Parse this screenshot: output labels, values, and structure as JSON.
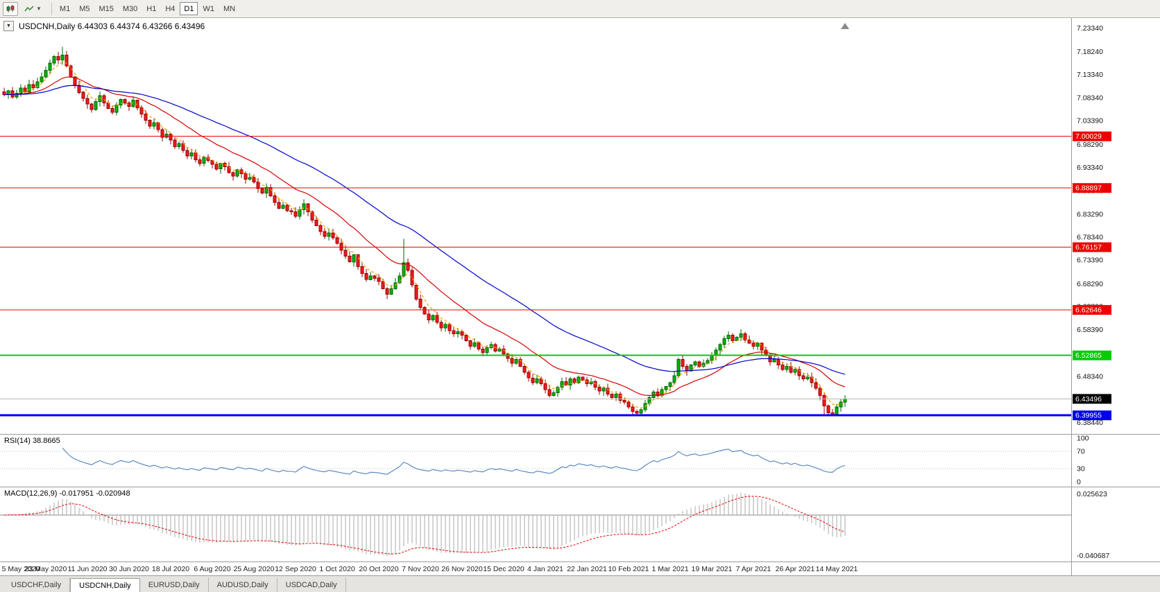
{
  "icons": {
    "dropdown_glyph": "▼",
    "caret_glyph": "▼"
  },
  "toolbar": {
    "timeframes": [
      "M1",
      "M5",
      "M15",
      "M30",
      "H1",
      "H4",
      "D1",
      "W1",
      "MN"
    ],
    "active_timeframe": "D1",
    "icons": [
      {
        "name": "chart-type-icon"
      },
      {
        "name": "indicators-icon"
      }
    ]
  },
  "chart": {
    "title": "USDCNH,Daily",
    "quote": {
      "open": "6.44303",
      "high": "6.44374",
      "low": "6.43266",
      "close": "6.43496"
    }
  },
  "chart_data": {
    "type": "candlestick",
    "symbol": "USDCNH",
    "timeframe": "Daily",
    "title": "USDCNH,Daily 6.44303 6.44374 6.43266 6.43496",
    "x_labels": [
      "5 May 2020",
      "23 May 2020",
      "11 Jun 2020",
      "30 Jun 2020",
      "18 Jul 2020",
      "6 Aug 2020",
      "25 Aug 2020",
      "12 Sep 2020",
      "1 Oct 2020",
      "20 Oct 2020",
      "7 Nov 2020",
      "26 Nov 2020",
      "15 Dec 2020",
      "4 Jan 2021",
      "22 Jan 2021",
      "10 Feb 2021",
      "1 Mar 2021",
      "19 Mar 2021",
      "7 Apr 2021",
      "26 Apr 2021",
      "14 May 2021"
    ],
    "x_label_bar_step": 10,
    "y_ticks": [
      "7.23340",
      "7.18240",
      "7.13340",
      "7.08340",
      "7.03390",
      "6.98290",
      "6.93340",
      "6.88340",
      "6.83290",
      "6.78340",
      "6.73390",
      "6.68290",
      "6.63390",
      "6.58390",
      "6.53340",
      "6.48340",
      "6.43340",
      "6.38440"
    ],
    "y_range": {
      "max": 7.255,
      "min": 6.3595
    },
    "closes": [
      7.09,
      7.098,
      7.085,
      7.093,
      7.104,
      7.096,
      7.112,
      7.105,
      7.118,
      7.128,
      7.142,
      7.158,
      7.172,
      7.165,
      7.175,
      7.152,
      7.128,
      7.11,
      7.095,
      7.082,
      7.07,
      7.058,
      7.075,
      7.088,
      7.072,
      7.06,
      7.052,
      7.068,
      7.08,
      7.072,
      7.065,
      7.078,
      7.062,
      7.048,
      7.035,
      7.022,
      7.03,
      7.015,
      6.998,
      7.005,
      6.992,
      6.978,
      6.985,
      6.97,
      6.958,
      6.965,
      6.95,
      6.942,
      6.955,
      6.948,
      6.94,
      6.93,
      6.942,
      6.935,
      6.922,
      6.915,
      6.928,
      6.92,
      6.908,
      6.912,
      6.902,
      6.888,
      6.878,
      6.89,
      6.872,
      6.858,
      6.845,
      6.852,
      6.84,
      6.838,
      6.828,
      6.842,
      6.855,
      6.838,
      6.82,
      6.808,
      6.795,
      6.785,
      6.792,
      6.782,
      6.77,
      6.755,
      6.742,
      6.73,
      6.745,
      6.72,
      6.705,
      6.692,
      6.7,
      6.695,
      6.688,
      6.672,
      6.66,
      6.672,
      6.685,
      6.7,
      6.728,
      6.712,
      6.68,
      6.65,
      6.632,
      6.618,
      6.605,
      6.615,
      6.6,
      6.588,
      6.595,
      6.582,
      6.575,
      6.58,
      6.572,
      6.56,
      6.548,
      6.556,
      6.542,
      6.535,
      6.545,
      6.552,
      6.538,
      6.542,
      6.532,
      6.522,
      6.512,
      6.52,
      6.505,
      6.492,
      6.48,
      6.47,
      6.478,
      6.468,
      6.455,
      6.442,
      6.448,
      6.46,
      6.472,
      6.465,
      6.478,
      6.47,
      6.482,
      6.476,
      6.468,
      6.472,
      6.46,
      6.452,
      6.458,
      6.445,
      6.438,
      6.445,
      6.432,
      6.428,
      6.418,
      6.408,
      6.404,
      6.412,
      6.425,
      6.438,
      6.45,
      6.442,
      6.455,
      6.462,
      6.47,
      6.485,
      6.52,
      6.505,
      6.495,
      6.508,
      6.515,
      6.505,
      6.512,
      6.518,
      6.528,
      6.54,
      6.552,
      6.565,
      6.572,
      6.56,
      6.568,
      6.575,
      6.562,
      6.555,
      6.548,
      6.555,
      6.54,
      6.528,
      6.515,
      6.52,
      6.508,
      6.498,
      6.505,
      6.492,
      6.498,
      6.485,
      6.478,
      6.482,
      6.47,
      6.458,
      6.442,
      6.42,
      6.405,
      6.402,
      6.418,
      6.428,
      6.435
    ],
    "wick_overrides": {
      "14": {
        "high": 7.193
      },
      "96": {
        "high": 6.78
      },
      "151": {
        "low": 6.399
      },
      "152": {
        "low": 6.398
      },
      "197": {
        "low": 6.401
      },
      "198": {
        "low": 6.398
      }
    },
    "horizontal_lines": [
      {
        "value": 7.00029,
        "label": "7.00029",
        "color": "#ee0000",
        "width": 1
      },
      {
        "value": 6.88897,
        "label": "6.88897",
        "color": "#ee0000",
        "width": 1
      },
      {
        "value": 6.76157,
        "label": "6.76157",
        "color": "#ee0000",
        "width": 1
      },
      {
        "value": 6.62646,
        "label": "6.62646",
        "color": "#ee0000",
        "width": 1
      },
      {
        "value": 6.52865,
        "label": "6.52865",
        "color": "#00cc00",
        "width": 2
      },
      {
        "value": 6.39955,
        "label": "6.39955",
        "color": "#0000ee",
        "width": 3
      }
    ],
    "current_price": {
      "value": 6.43496,
      "label": "6.43496",
      "badge_color": "#000000",
      "line_color": "#b4b4b4"
    },
    "moving_averages": [
      {
        "period": 5,
        "color": "#e8a200",
        "dash": "4,3"
      },
      {
        "period": 20,
        "color": "#d40000",
        "dash": ""
      },
      {
        "period": 50,
        "color": "#0000c8",
        "dash": ""
      }
    ],
    "candle_colors": {
      "up_fill": "#00b300",
      "up_stroke": "#006600",
      "down_fill": "#ee1c1c",
      "down_stroke": "#990000"
    },
    "indicators": {
      "rsi": {
        "name": "RSI(14)",
        "value": "38.8665",
        "period": 14,
        "levels": [
          100,
          70,
          30,
          0
        ],
        "line_color": "#4f81bd"
      },
      "macd": {
        "name": "MACD(12,26,9)",
        "values_text": "-0.017951 -0.020948",
        "fast": 12,
        "slow": 26,
        "signal": 9,
        "axis_max": "0.025623",
        "axis_min": "-0.040687",
        "hist_color": "#a8a8a8",
        "signal_color": "#e00000"
      }
    }
  },
  "tabs": {
    "items": [
      {
        "label": "USDCHF,Daily",
        "active": false
      },
      {
        "label": "USDCNH,Daily",
        "active": true
      },
      {
        "label": "EURUSD,Daily",
        "active": false
      },
      {
        "label": "AUDUSD,Daily",
        "active": false
      },
      {
        "label": "USDCAD,Daily",
        "active": false
      }
    ]
  }
}
